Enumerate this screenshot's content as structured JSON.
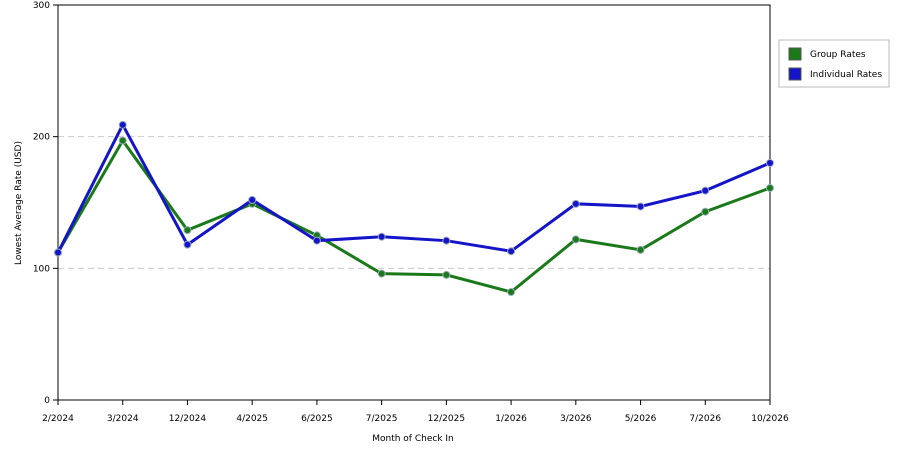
{
  "chart_data": {
    "type": "line",
    "x_label": "Month of Check In",
    "y_label": "Lowest Average Rate (USD)",
    "categories": [
      "2/2024",
      "3/2024",
      "12/2024",
      "4/2025",
      "6/2025",
      "7/2025",
      "12/2025",
      "1/2026",
      "3/2026",
      "5/2026",
      "7/2026",
      "10/2026"
    ],
    "series": [
      {
        "name": "Group Rates",
        "color": "#1a7a1a",
        "values": [
          112,
          197,
          129,
          149,
          125,
          96,
          95,
          82,
          122,
          114,
          143,
          161
        ]
      },
      {
        "name": "Individual Rates",
        "color": "#1414c8",
        "values": [
          112,
          209,
          118,
          152,
          121,
          124,
          121,
          113,
          149,
          147,
          159,
          180
        ]
      }
    ],
    "ylim": [
      0,
      300
    ],
    "yticks": [
      0,
      100,
      200,
      300
    ],
    "grid": true,
    "legend": "right"
  }
}
